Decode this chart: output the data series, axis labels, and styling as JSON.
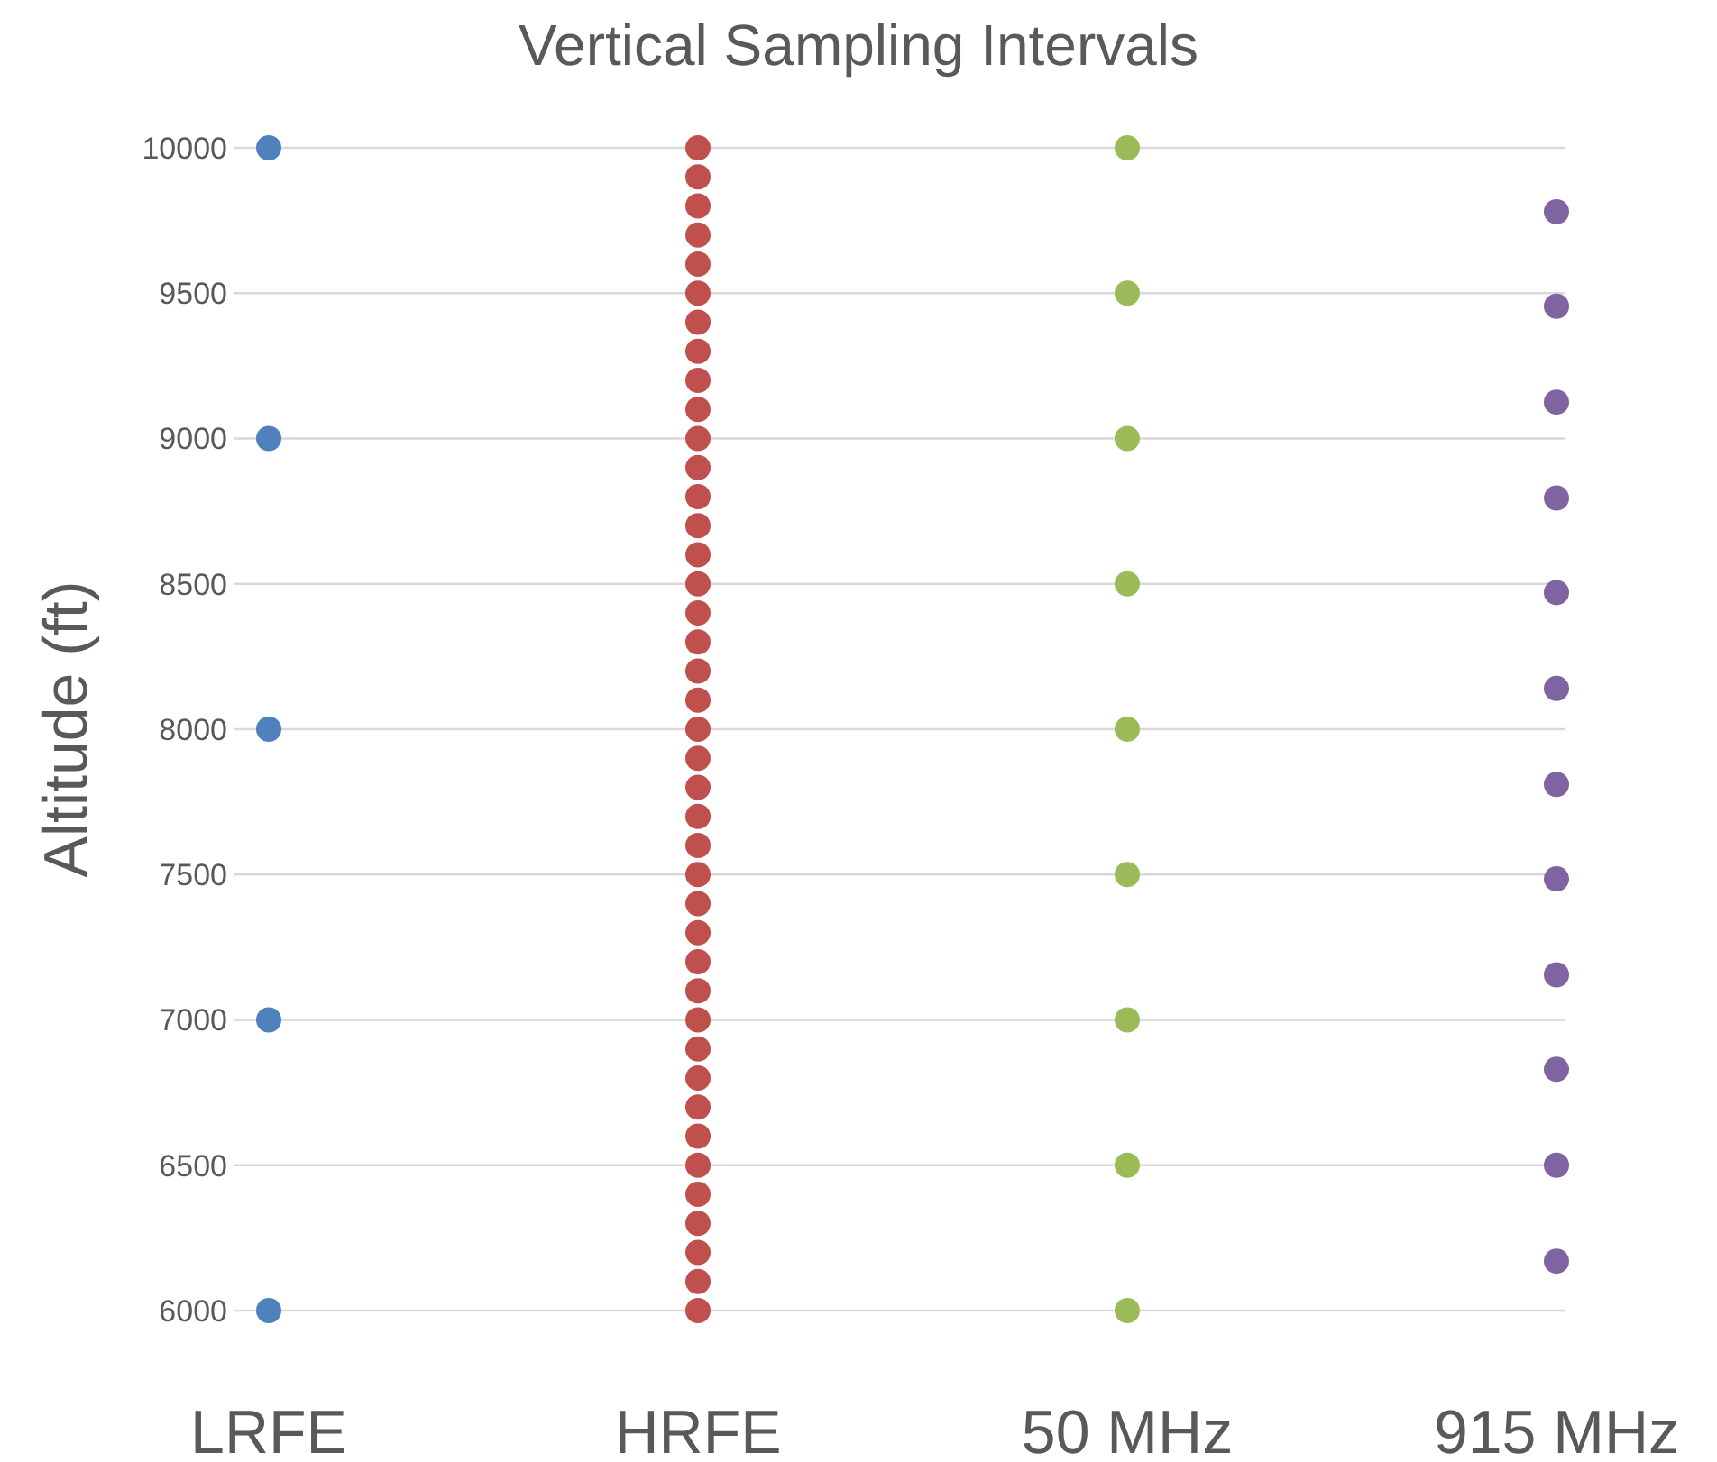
{
  "chart_data": {
    "type": "scatter",
    "title": "Vertical Sampling Intervals",
    "ylabel": "Altitude (ft)",
    "categories": [
      "LRFE",
      "HRFE",
      "50 MHz",
      "915 MHz"
    ],
    "ylim": [
      6000,
      10000
    ],
    "yticks": [
      6000,
      6500,
      7000,
      7500,
      8000,
      8500,
      9000,
      9500,
      10000
    ],
    "grid": "y",
    "marker": "circle",
    "series": [
      {
        "color": "#4f81bd",
        "x": [
          "LRFE",
          "LRFE",
          "LRFE",
          "LRFE",
          "LRFE"
        ],
        "values": [
          6000,
          7000,
          8000,
          9000,
          10000
        ]
      },
      {
        "color": "#c0504d",
        "x": [
          "HRFE",
          "HRFE",
          "HRFE",
          "HRFE",
          "HRFE",
          "HRFE",
          "HRFE",
          "HRFE",
          "HRFE",
          "HRFE",
          "HRFE",
          "HRFE",
          "HRFE",
          "HRFE",
          "HRFE",
          "HRFE",
          "HRFE",
          "HRFE",
          "HRFE",
          "HRFE",
          "HRFE",
          "HRFE",
          "HRFE",
          "HRFE",
          "HRFE",
          "HRFE",
          "HRFE",
          "HRFE",
          "HRFE",
          "HRFE",
          "HRFE",
          "HRFE",
          "HRFE",
          "HRFE",
          "HRFE",
          "HRFE",
          "HRFE",
          "HRFE",
          "HRFE",
          "HRFE",
          "HRFE"
        ],
        "values": [
          6000,
          6100,
          6200,
          6300,
          6400,
          6500,
          6600,
          6700,
          6800,
          6900,
          7000,
          7100,
          7200,
          7300,
          7400,
          7500,
          7600,
          7700,
          7800,
          7900,
          8000,
          8100,
          8200,
          8300,
          8400,
          8500,
          8600,
          8700,
          8800,
          8900,
          9000,
          9100,
          9200,
          9300,
          9400,
          9500,
          9600,
          9700,
          9800,
          9900,
          10000
        ]
      },
      {
        "color": "#9bbb59",
        "x": [
          "50 MHz",
          "50 MHz",
          "50 MHz",
          "50 MHz",
          "50 MHz",
          "50 MHz",
          "50 MHz",
          "50 MHz",
          "50 MHz"
        ],
        "values": [
          6000,
          6500,
          7000,
          7500,
          8000,
          8500,
          9000,
          9500,
          10000
        ]
      },
      {
        "color": "#8064a2",
        "x": [
          "915 MHz",
          "915 MHz",
          "915 MHz",
          "915 MHz",
          "915 MHz",
          "915 MHz",
          "915 MHz",
          "915 MHz",
          "915 MHz",
          "915 MHz",
          "915 MHz",
          "915 MHz"
        ],
        "values": [
          6170,
          6500,
          6830,
          7155,
          7485,
          7810,
          8140,
          8470,
          8795,
          9125,
          9455,
          9780
        ]
      }
    ]
  }
}
